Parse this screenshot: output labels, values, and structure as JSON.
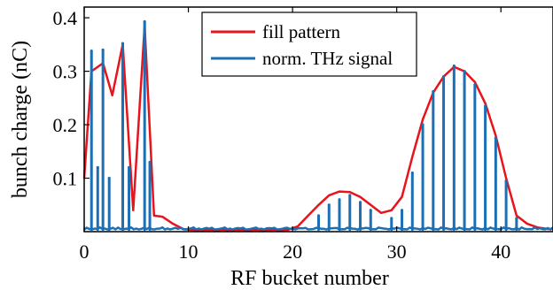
{
  "chart_data": {
    "type": "line",
    "xlabel": "RF bucket number",
    "ylabel": "bunch charge (nC)",
    "xlim": [
      0,
      45
    ],
    "ylim": [
      0,
      0.42
    ],
    "x_ticks": [
      0,
      10,
      20,
      30,
      40
    ],
    "y_ticks": [
      0.1,
      0.2,
      0.3,
      0.4
    ],
    "x_tick_labels": [
      "0",
      "10",
      "20",
      "30",
      "40"
    ],
    "y_tick_labels": [
      "0.1",
      "0.2",
      "0.3",
      "0.4"
    ],
    "grid": false,
    "legend_position": "top-center",
    "series": [
      {
        "name": "fill pattern",
        "color": "#e8131b",
        "style": "line",
        "x": [
          0,
          0.7,
          1.8,
          2.7,
          3.7,
          4.7,
          5.8,
          6.7,
          7.5,
          8.5,
          9.5,
          10.5,
          11.5,
          12.5,
          13.5,
          14.5,
          15.5,
          16.5,
          17.5,
          18.5,
          19.5,
          20.5,
          21.5,
          22.5,
          23.5,
          24.5,
          25.5,
          26.5,
          27.5,
          28.5,
          29.5,
          30.5,
          31.5,
          32.5,
          33.5,
          34.5,
          35.5,
          36.5,
          37.5,
          38.5,
          39.5,
          40.5,
          41.5,
          42.5,
          43.5,
          44.5,
          45
        ],
        "y": [
          0.1,
          0.3,
          0.315,
          0.255,
          0.35,
          0.04,
          0.385,
          0.03,
          0.028,
          0.015,
          0.005,
          0.003,
          0.003,
          0.003,
          0.003,
          0.003,
          0.003,
          0.003,
          0.003,
          0.003,
          0.003,
          0.01,
          0.03,
          0.05,
          0.068,
          0.075,
          0.074,
          0.065,
          0.05,
          0.035,
          0.04,
          0.065,
          0.14,
          0.21,
          0.26,
          0.29,
          0.308,
          0.3,
          0.28,
          0.24,
          0.18,
          0.1,
          0.03,
          0.015,
          0.008,
          0.005,
          0.005
        ]
      },
      {
        "name": "norm. THz signal",
        "color": "#1a6fb5",
        "style": "spikes",
        "x": [
          0.7,
          1.3,
          1.8,
          2.4,
          3.7,
          4.3,
          5.8,
          6.3,
          22.5,
          23.5,
          24.5,
          25.5,
          26.5,
          27.5,
          29.5,
          30.5,
          31.5,
          32.5,
          33.5,
          34.5,
          35.5,
          36.5,
          37.5,
          38.5,
          39.5,
          40.5,
          41.5
        ],
        "y": [
          0.338,
          0.12,
          0.34,
          0.1,
          0.352,
          0.12,
          0.393,
          0.13,
          0.03,
          0.05,
          0.06,
          0.068,
          0.055,
          0.04,
          0.025,
          0.04,
          0.11,
          0.2,
          0.262,
          0.29,
          0.31,
          0.3,
          0.275,
          0.235,
          0.175,
          0.095,
          0.025
        ]
      }
    ]
  }
}
